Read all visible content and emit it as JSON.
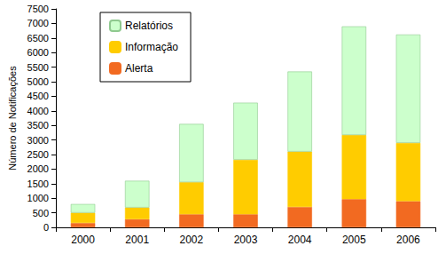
{
  "chart_data": {
    "type": "bar",
    "stacked": true,
    "y_label": "Número de Notificações",
    "categories": [
      "2000",
      "2001",
      "2002",
      "2003",
      "2004",
      "2005",
      "2006"
    ],
    "series": [
      {
        "name": "Alerta",
        "color": "#f26a21",
        "values": [
          150,
          280,
          450,
          450,
          700,
          970,
          900
        ]
      },
      {
        "name": "Informação",
        "color": "#ffcc00",
        "values": [
          350,
          400,
          1100,
          1870,
          1900,
          2200,
          2000
        ]
      },
      {
        "name": "Relatórios",
        "color": "#ccffcc",
        "values": [
          300,
          920,
          2000,
          1960,
          2750,
          3730,
          3720
        ]
      }
    ],
    "ylim": [
      0,
      7500
    ],
    "yticks": [
      0,
      500,
      1000,
      1500,
      2000,
      2500,
      3000,
      3500,
      4000,
      4500,
      5000,
      5500,
      6000,
      6500,
      7000,
      7500
    ],
    "grid": false,
    "legend": "top-left"
  }
}
